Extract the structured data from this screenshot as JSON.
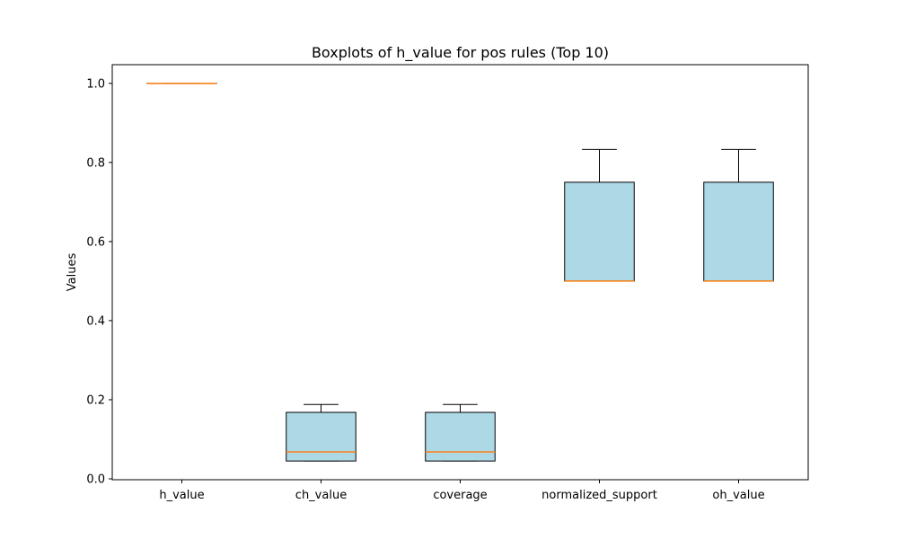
{
  "chart_data": {
    "type": "boxplot",
    "title": "Boxplots of h_value for pos rules (Top 10)",
    "xlabel": "",
    "ylabel": "Values",
    "ylim": [
      -0.0023,
      1.0473
    ],
    "yticks": [
      0.0,
      0.2,
      0.4,
      0.6,
      0.8,
      1.0
    ],
    "ytick_labels": [
      "0.0",
      "0.2",
      "0.4",
      "0.6",
      "0.8",
      "1.0"
    ],
    "categories": [
      "h_value",
      "ch_value",
      "coverage",
      "normalized_support",
      "oh_value"
    ],
    "boxes": [
      {
        "name": "h_value",
        "whisker_low": 1.0,
        "q1": 1.0,
        "median": 1.0,
        "q3": 1.0,
        "whisker_high": 1.0
      },
      {
        "name": "ch_value",
        "whisker_low": 0.045,
        "q1": 0.045,
        "median": 0.068,
        "q3": 0.168,
        "whisker_high": 0.188
      },
      {
        "name": "coverage",
        "whisker_low": 0.045,
        "q1": 0.045,
        "median": 0.068,
        "q3": 0.168,
        "whisker_high": 0.188
      },
      {
        "name": "normalized_support",
        "whisker_low": 0.5,
        "q1": 0.5,
        "median": 0.5,
        "q3": 0.75,
        "whisker_high": 0.833
      },
      {
        "name": "oh_value",
        "whisker_low": 0.5,
        "q1": 0.5,
        "median": 0.5,
        "q3": 0.75,
        "whisker_high": 0.833
      }
    ],
    "colors": {
      "box_fill": "#add8e6",
      "box_edge": "#000000",
      "median": "#ff7f0e",
      "axes": "#000000",
      "background": "#ffffff"
    },
    "grid": false,
    "legend": "none"
  }
}
